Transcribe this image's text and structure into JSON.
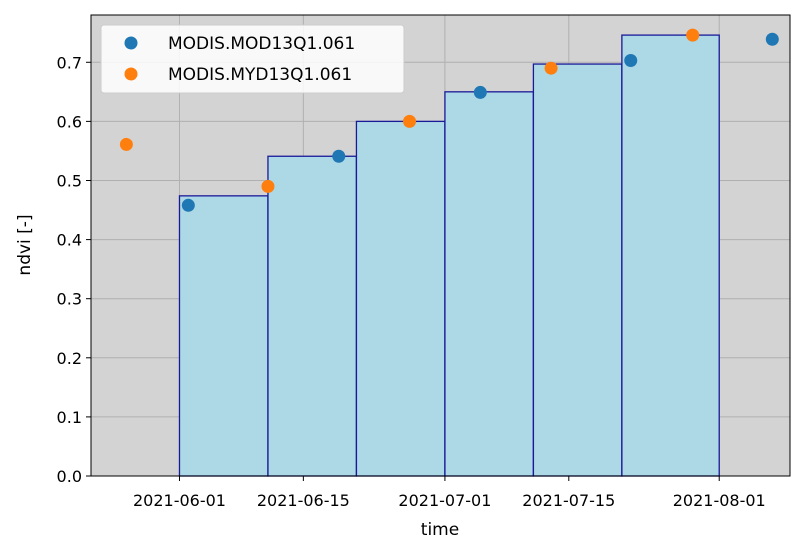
{
  "chart_data": {
    "type": "scatter",
    "xlabel": "time",
    "ylabel": "ndvi [-]",
    "xlim": [
      "2021-05-22",
      "2021-08-09"
    ],
    "ylim": [
      0,
      0.78
    ],
    "grid": true,
    "x_ticks": [
      "2021-06-01",
      "2021-06-15",
      "2021-07-01",
      "2021-07-15",
      "2021-08-01"
    ],
    "y_ticks": [
      "0.0",
      "0.1",
      "0.2",
      "0.3",
      "0.4",
      "0.5",
      "0.6",
      "0.7"
    ],
    "legend_position": "top-left",
    "series": [
      {
        "name": "MODIS.MOD13Q1.061",
        "color": "#1f77b4",
        "points": [
          {
            "x": "2021-06-02",
            "y": 0.458
          },
          {
            "x": "2021-06-19",
            "y": 0.541
          },
          {
            "x": "2021-07-05",
            "y": 0.649
          },
          {
            "x": "2021-07-22",
            "y": 0.703
          },
          {
            "x": "2021-08-07",
            "y": 0.739
          }
        ]
      },
      {
        "name": "MODIS.MYD13Q1.061",
        "color": "#ff7f0e",
        "points": [
          {
            "x": "2021-05-26",
            "y": 0.561
          },
          {
            "x": "2021-06-11",
            "y": 0.49
          },
          {
            "x": "2021-06-27",
            "y": 0.6
          },
          {
            "x": "2021-07-13",
            "y": 0.69
          },
          {
            "x": "2021-07-29",
            "y": 0.746
          }
        ]
      }
    ],
    "steps": {
      "fill_color": "#add8e6",
      "edge_color": "#1a1a99",
      "bins": [
        {
          "start": "2021-06-01",
          "end": "2021-06-11",
          "y": 0.474
        },
        {
          "start": "2021-06-11",
          "end": "2021-06-21",
          "y": 0.541
        },
        {
          "start": "2021-06-21",
          "end": "2021-07-01",
          "y": 0.6
        },
        {
          "start": "2021-07-01",
          "end": "2021-07-11",
          "y": 0.65
        },
        {
          "start": "2021-07-11",
          "end": "2021-07-21",
          "y": 0.697
        },
        {
          "start": "2021-07-21",
          "end": "2021-08-01",
          "y": 0.746
        }
      ]
    }
  }
}
